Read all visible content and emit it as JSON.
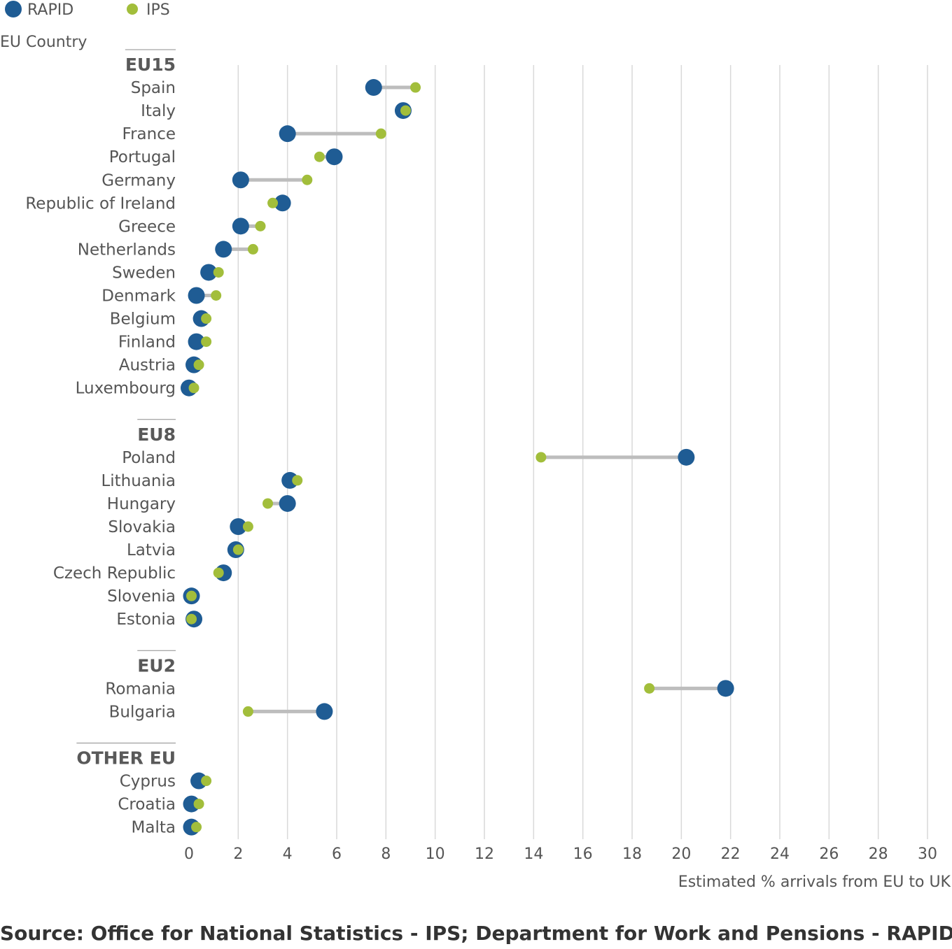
{
  "source_text": "Source: Office for National Statistics - IPS; Department for Work and Pensions - RAPID",
  "colors": {
    "rapid": "#1f5c94",
    "ips": "#a2be3b",
    "connector": "#bdbdbd",
    "grid": "#d9d9d9",
    "text": "#555555"
  },
  "chart_data": {
    "type": "dot-plot",
    "legend": [
      {
        "name": "RAPID",
        "color": "#1f5c94"
      },
      {
        "name": "IPS",
        "color": "#a2be3b"
      }
    ],
    "legend_position": "top-left",
    "ylabel": "EU Country",
    "xlabel": "Estimated % arrivals from EU to UK",
    "xlim": [
      0,
      30
    ],
    "xticks": [
      0,
      2,
      4,
      6,
      8,
      10,
      12,
      14,
      16,
      18,
      20,
      22,
      24,
      26,
      28,
      30
    ],
    "grid": "vertical",
    "groups": [
      {
        "name": "EU15",
        "rows": [
          {
            "country": "Spain",
            "rapid": 7.5,
            "ips": 9.2
          },
          {
            "country": "Italy",
            "rapid": 8.7,
            "ips": 8.8
          },
          {
            "country": "France",
            "rapid": 4.0,
            "ips": 7.8
          },
          {
            "country": "Portugal",
            "rapid": 5.9,
            "ips": 5.3
          },
          {
            "country": "Germany",
            "rapid": 2.1,
            "ips": 4.8
          },
          {
            "country": "Republic of Ireland",
            "rapid": 3.8,
            "ips": 3.4
          },
          {
            "country": "Greece",
            "rapid": 2.1,
            "ips": 2.9
          },
          {
            "country": "Netherlands",
            "rapid": 1.4,
            "ips": 2.6
          },
          {
            "country": "Sweden",
            "rapid": 0.8,
            "ips": 1.2
          },
          {
            "country": "Denmark",
            "rapid": 0.3,
            "ips": 1.1
          },
          {
            "country": "Belgium",
            "rapid": 0.5,
            "ips": 0.7
          },
          {
            "country": "Finland",
            "rapid": 0.3,
            "ips": 0.7
          },
          {
            "country": "Austria",
            "rapid": 0.2,
            "ips": 0.4
          },
          {
            "country": "Luxembourg",
            "rapid": 0.0,
            "ips": 0.2
          }
        ]
      },
      {
        "name": "EU8",
        "rows": [
          {
            "country": "Poland",
            "rapid": 20.2,
            "ips": 14.3
          },
          {
            "country": "Lithuania",
            "rapid": 4.1,
            "ips": 4.4
          },
          {
            "country": "Hungary",
            "rapid": 4.0,
            "ips": 3.2
          },
          {
            "country": "Slovakia",
            "rapid": 2.0,
            "ips": 2.4
          },
          {
            "country": "Latvia",
            "rapid": 1.9,
            "ips": 2.0
          },
          {
            "country": "Czech Republic",
            "rapid": 1.4,
            "ips": 1.2
          },
          {
            "country": "Slovenia",
            "rapid": 0.1,
            "ips": 0.1
          },
          {
            "country": "Estonia",
            "rapid": 0.2,
            "ips": 0.1
          }
        ]
      },
      {
        "name": "EU2",
        "rows": [
          {
            "country": "Romania",
            "rapid": 21.8,
            "ips": 18.7
          },
          {
            "country": "Bulgaria",
            "rapid": 5.5,
            "ips": 2.4
          }
        ]
      },
      {
        "name": "OTHER EU",
        "rows": [
          {
            "country": "Cyprus",
            "rapid": 0.4,
            "ips": 0.7
          },
          {
            "country": "Croatia",
            "rapid": 0.1,
            "ips": 0.4
          },
          {
            "country": "Malta",
            "rapid": 0.1,
            "ips": 0.3
          }
        ]
      }
    ]
  }
}
